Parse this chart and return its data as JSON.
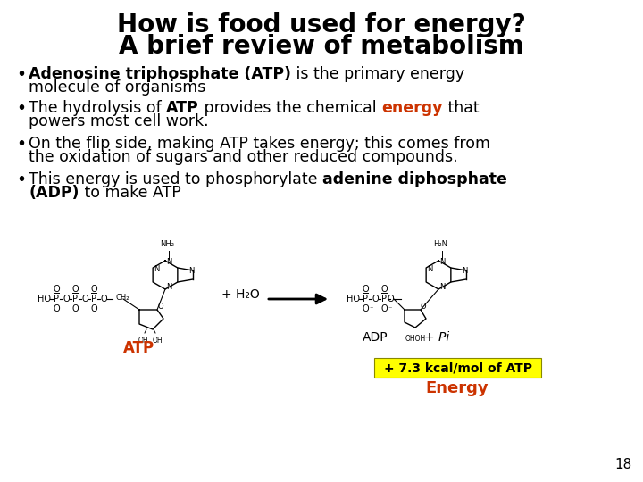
{
  "title_line1": "How is food used for energy?",
  "title_line2": "A brief review of metabolism",
  "title_fontsize": 20,
  "background_color": "#ffffff",
  "bullet_fontsize": 12.5,
  "atp_label": "ATP",
  "atp_label_color": "#cc3300",
  "adp_text": "ADP",
  "pi_text": "+ Pi",
  "energy_box_text": "+ 7.3 kcal/mol of ATP",
  "energy_box_bg": "#ffff00",
  "energy_box_color": "#000000",
  "energy_label": "Energy",
  "energy_label_color": "#cc3300",
  "slide_number": "18",
  "plus_h2o": "+ H₂O",
  "h2n_label": "H₂N",
  "nh2_label": "NH₂",
  "ch2_label": "CH₂",
  "oh_label": "OH",
  "ohoh_label": "OHOH"
}
